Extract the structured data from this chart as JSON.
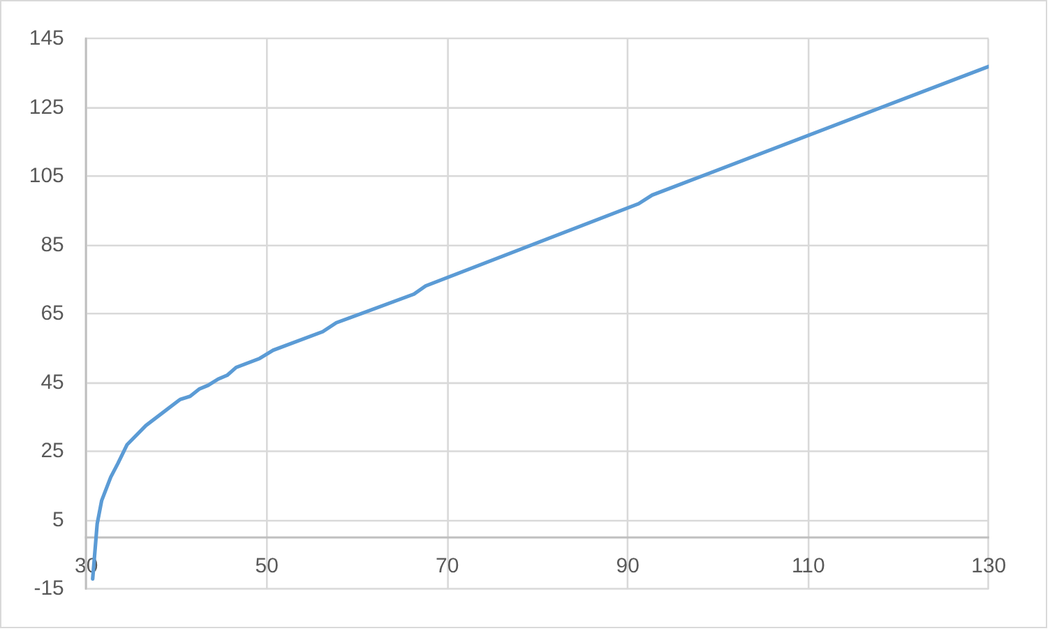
{
  "chart_data": {
    "type": "line",
    "color": "#5b9bd5",
    "x": [
      30.7,
      31.2,
      31.7,
      32.7,
      33.5,
      34.5,
      36.6,
      38.4,
      40.4,
      41.5,
      42.5,
      43.5,
      44.6,
      45.6,
      46.6,
      49.2,
      50.7,
      56.2,
      57.7,
      66.3,
      67.6,
      91.2,
      92.7,
      130
    ],
    "values": [
      -12,
      4,
      10.8,
      17.6,
      21.6,
      27,
      32.6,
      36.2,
      40.2,
      41.1,
      43.2,
      44.3,
      46.1,
      47.2,
      49.5,
      52.1,
      54.5,
      59.9,
      62.5,
      70.8,
      73.2,
      97.1,
      99.6,
      137
    ],
    "xlim": [
      30,
      130
    ],
    "xticks": [
      30,
      50,
      70,
      90,
      110,
      130
    ],
    "ylim": [
      -15,
      145
    ],
    "yticks": [
      -15,
      5,
      25,
      45,
      65,
      85,
      105,
      125,
      145
    ],
    "grid": true
  }
}
